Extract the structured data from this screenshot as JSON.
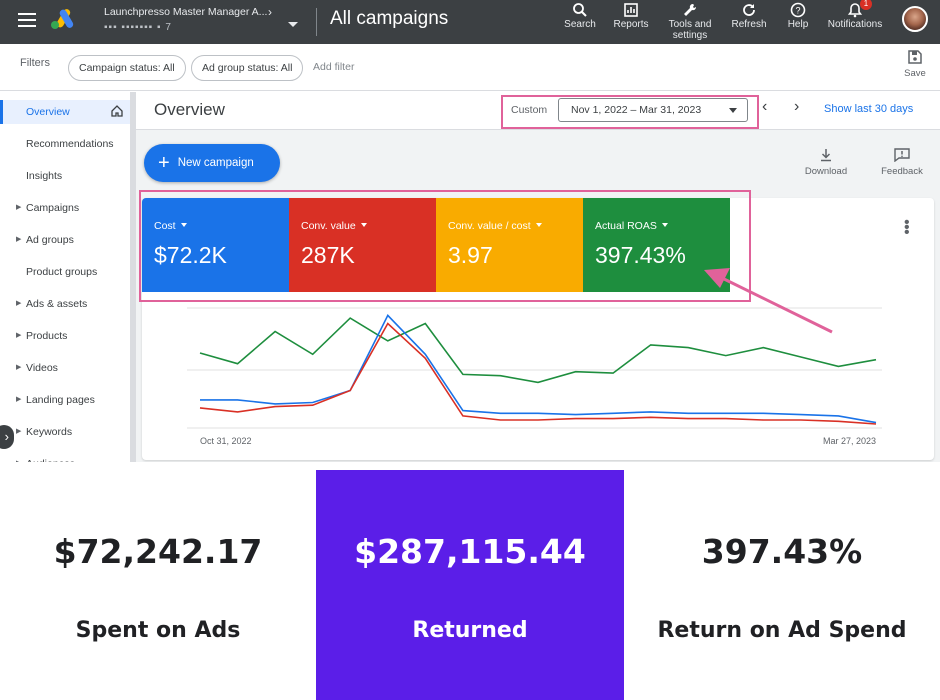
{
  "topbar": {
    "account_name": "Launchpresso Master Manager A...",
    "account_id": "▪▪▪ ▪▪▪▪▪▪▪ ▪ 7",
    "page_heading": "All campaigns",
    "tools": [
      {
        "icon": "search-icon",
        "label": "Search"
      },
      {
        "icon": "reports-icon",
        "label": "Reports"
      },
      {
        "icon": "wrench-icon",
        "label": "Tools and settings"
      },
      {
        "icon": "refresh-icon",
        "label": "Refresh"
      },
      {
        "icon": "help-icon",
        "label": "Help"
      },
      {
        "icon": "bell-icon",
        "label": "Notifications"
      }
    ],
    "notification_count": "1"
  },
  "filters": {
    "label": "Filters",
    "chips": [
      "Campaign status: All",
      "Ad group status: All"
    ],
    "add_filter": "Add filter",
    "save_label": "Save"
  },
  "sidebar": {
    "items": [
      {
        "label": "Overview",
        "expandable": false,
        "active": true
      },
      {
        "label": "Recommendations",
        "expandable": false
      },
      {
        "label": "Insights",
        "expandable": false
      },
      {
        "label": "Campaigns",
        "expandable": true
      },
      {
        "label": "Ad groups",
        "expandable": true
      },
      {
        "label": "Product groups",
        "expandable": false
      },
      {
        "label": "Ads & assets",
        "expandable": true
      },
      {
        "label": "Products",
        "expandable": true
      },
      {
        "label": "Videos",
        "expandable": true
      },
      {
        "label": "Landing pages",
        "expandable": true
      },
      {
        "label": "Keywords",
        "expandable": true
      },
      {
        "label": "Audiences",
        "expandable": true
      }
    ]
  },
  "overview": {
    "title": "Overview",
    "date_prefix": "Custom",
    "date_range": "Nov 1, 2022 – Mar 31, 2023",
    "show_last": "Show last 30 days",
    "new_campaign": "New campaign",
    "download": "Download",
    "feedback": "Feedback"
  },
  "metrics": [
    {
      "label": "Cost",
      "value": "$72.2K",
      "color": "#1a73e8"
    },
    {
      "label": "Conv. value",
      "value": "287K",
      "color": "#d93025"
    },
    {
      "label": "Conv. value / cost",
      "value": "3.97",
      "color": "#f9ab00"
    },
    {
      "label": "Actual ROAS",
      "value": "397.43%",
      "color": "#1e8e3e"
    }
  ],
  "chart_data": {
    "type": "line",
    "x_start_label": "Oct 31, 2022",
    "x_end_label": "Mar 27, 2023",
    "series": [
      {
        "color": "#1e8e3e",
        "values": [
          0.56,
          0.48,
          0.72,
          0.55,
          0.82,
          0.65,
          0.78,
          0.4,
          0.39,
          0.34,
          0.42,
          0.41,
          0.62,
          0.6,
          0.54,
          0.6,
          0.53,
          0.46,
          0.51
        ]
      },
      {
        "color": "#1a73e8",
        "values": [
          0.21,
          0.21,
          0.18,
          0.19,
          0.28,
          0.84,
          0.55,
          0.13,
          0.11,
          0.11,
          0.1,
          0.11,
          0.12,
          0.11,
          0.11,
          0.11,
          0.1,
          0.09,
          0.04
        ]
      },
      {
        "color": "#d93025",
        "values": [
          0.15,
          0.12,
          0.16,
          0.17,
          0.28,
          0.78,
          0.52,
          0.09,
          0.06,
          0.06,
          0.07,
          0.07,
          0.08,
          0.07,
          0.07,
          0.06,
          0.06,
          0.05,
          0.03
        ]
      }
    ]
  },
  "stats": [
    {
      "value": "$72,242.17",
      "label": "Spent on Ads"
    },
    {
      "value": "$287,115.44",
      "label": "Returned"
    },
    {
      "value": "397.43%",
      "label": "Return on Ad Spend"
    }
  ],
  "colors": {
    "highlight": "#e0629a",
    "purple": "#5b1ee8"
  }
}
